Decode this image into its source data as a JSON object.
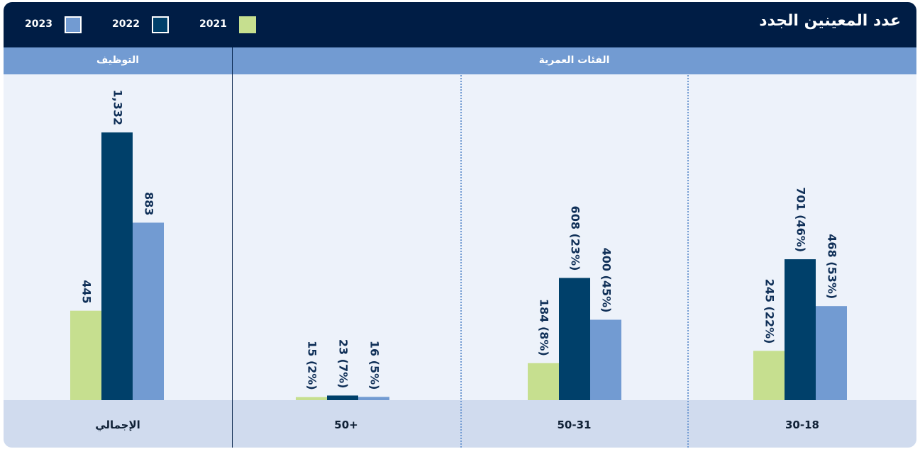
{
  "header": {
    "title": "عدد المعينين الجدد",
    "legend": [
      {
        "label": "2021",
        "color": "#c6df8f"
      },
      {
        "label": "2022",
        "color": "#00406a"
      },
      {
        "label": "2023",
        "color": "#729bd2"
      }
    ]
  },
  "subheader": {
    "age_groups_label": "الفئات العمرية",
    "hiring_label": "التوظيف"
  },
  "chart_data": {
    "type": "bar",
    "title": "عدد المعينين الجدد",
    "categories": [
      "30-18",
      "50-31",
      "+50",
      "الإجمالي"
    ],
    "series": [
      {
        "name": "2021",
        "values": [
          245,
          184,
          15,
          445
        ],
        "labels": [
          "245 (22%)",
          "184 (8%)",
          "15 (2%)",
          "445"
        ]
      },
      {
        "name": "2022",
        "values": [
          701,
          608,
          23,
          1332
        ],
        "labels": [
          "701 (46%)",
          "608 (23%)",
          "23 (7%)",
          "1,332"
        ]
      },
      {
        "name": "2023",
        "values": [
          468,
          400,
          16,
          883
        ],
        "labels": [
          "468 (53%)",
          "400 (45%)",
          "16 (5%)",
          "883"
        ]
      }
    ],
    "groups": [
      {
        "label": "الفئات العمرية",
        "categories": [
          "30-18",
          "50-31",
          "+50"
        ]
      },
      {
        "label": "التوظيف",
        "categories": [
          "الإجمالي"
        ]
      }
    ],
    "colors": {
      "2021": "#c6df8f",
      "2022": "#00406a",
      "2023": "#729bd2"
    },
    "legend_position": "top-left",
    "grid": false
  }
}
